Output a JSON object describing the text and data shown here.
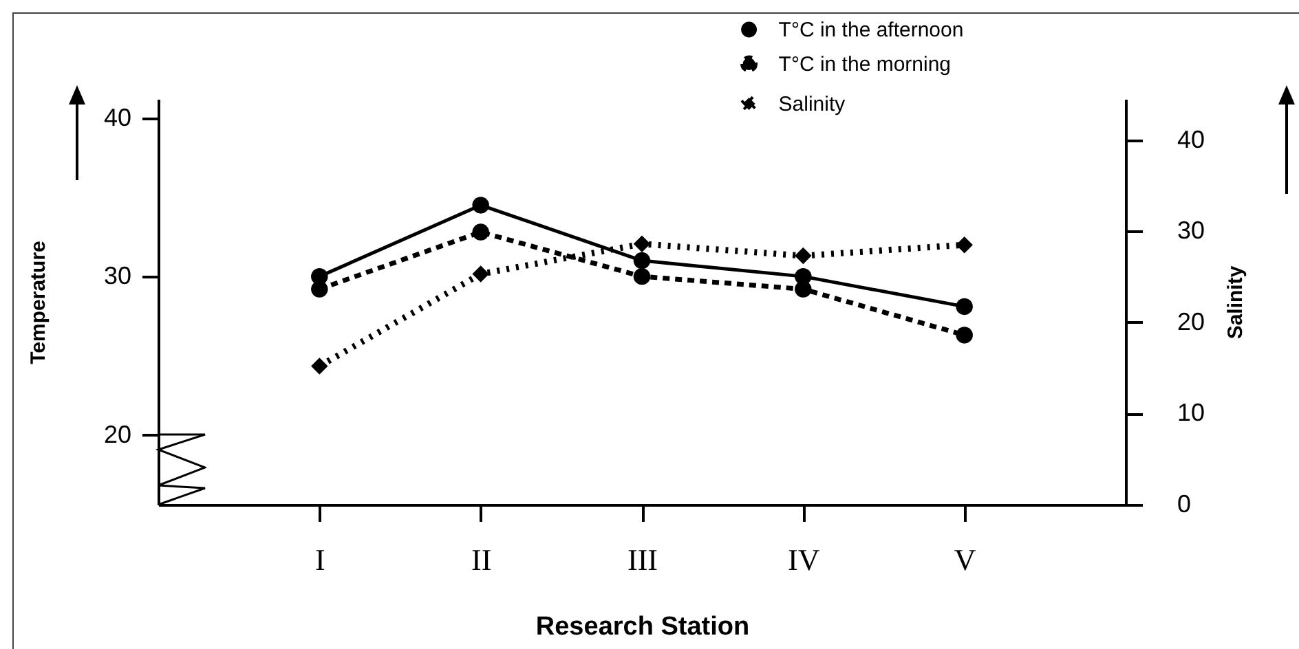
{
  "chart_data": {
    "type": "line",
    "xlabel": "Research Station",
    "ylabel": "Temperature",
    "y2label": "Salinity",
    "categories": [
      "I",
      "II",
      "III",
      "IV",
      "V"
    ],
    "series": [
      {
        "name": "T°C in the afternoon",
        "color": "#000000",
        "line_style": "solid",
        "marker": "circle",
        "values": [
          30,
          34.5,
          31,
          30,
          28.1
        ]
      },
      {
        "name": "T°C in the morning",
        "color": "#000000",
        "line_style": "dashed",
        "marker": "circle",
        "values": [
          29.2,
          32.8,
          30,
          29.2,
          26.3
        ]
      },
      {
        "name": "Salinity",
        "color": "#000000",
        "line_style": "dotted",
        "marker": "diamond",
        "axis": "y2",
        "values": [
          15.2,
          25.3,
          28.6,
          27.3,
          28.5
        ]
      }
    ],
    "ylim": [
      15.6,
      41.2
    ],
    "yticks": [
      20,
      30,
      40
    ],
    "y2lim": [
      0,
      44.5
    ],
    "y2ticks": [
      0,
      10,
      20,
      30,
      40
    ],
    "legend": "top right",
    "grid": false
  }
}
